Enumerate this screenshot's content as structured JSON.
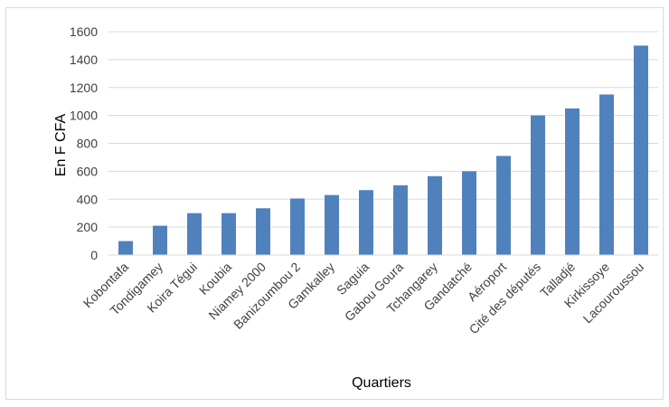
{
  "chart_data": {
    "type": "bar",
    "categories": [
      "Kobontafa",
      "Tondigamey",
      "Koira Tégui",
      "Koubia",
      "Niamey 2000",
      "Banizoumbou 2",
      "Gamkalley",
      "Saguia",
      "Gabou Goura",
      "Tchangarey",
      "Gandatché",
      "Aéroport",
      "Cité des députés",
      "Talladjé",
      "Kirkissoye",
      "Lacouroussou"
    ],
    "values": [
      100,
      210,
      300,
      300,
      335,
      405,
      430,
      465,
      500,
      565,
      600,
      710,
      1000,
      1050,
      1150,
      1500
    ],
    "xlabel": "Quartiers",
    "ylabel": "En F CFA",
    "ylim": [
      0,
      1600
    ],
    "yticks": [
      0,
      200,
      400,
      600,
      800,
      1000,
      1200,
      1400,
      1600
    ],
    "grid": true,
    "legend": "none",
    "bar_color": "#4f81bd",
    "grid_color": "#d9d9d9"
  }
}
